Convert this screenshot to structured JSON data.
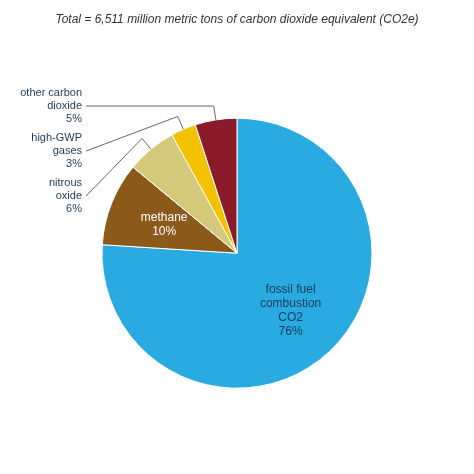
{
  "chart_data": {
    "type": "pie",
    "title": "Total = 6,511 million metric tons of carbon dioxide equivalent (CO2e)",
    "categories": [
      "fossil fuel\ncombustion\nCO2\n76%",
      "methane\n10%",
      "nitrous\noxide\n6%",
      "high-GWP\ngases\n3%",
      "other carbon\ndioxide\n5%"
    ],
    "values": [
      76,
      10,
      6,
      3,
      5
    ],
    "colors": [
      "#29ABE2",
      "#8B5A1A",
      "#D4C87A",
      "#F2C200",
      "#8B1A2A"
    ]
  }
}
